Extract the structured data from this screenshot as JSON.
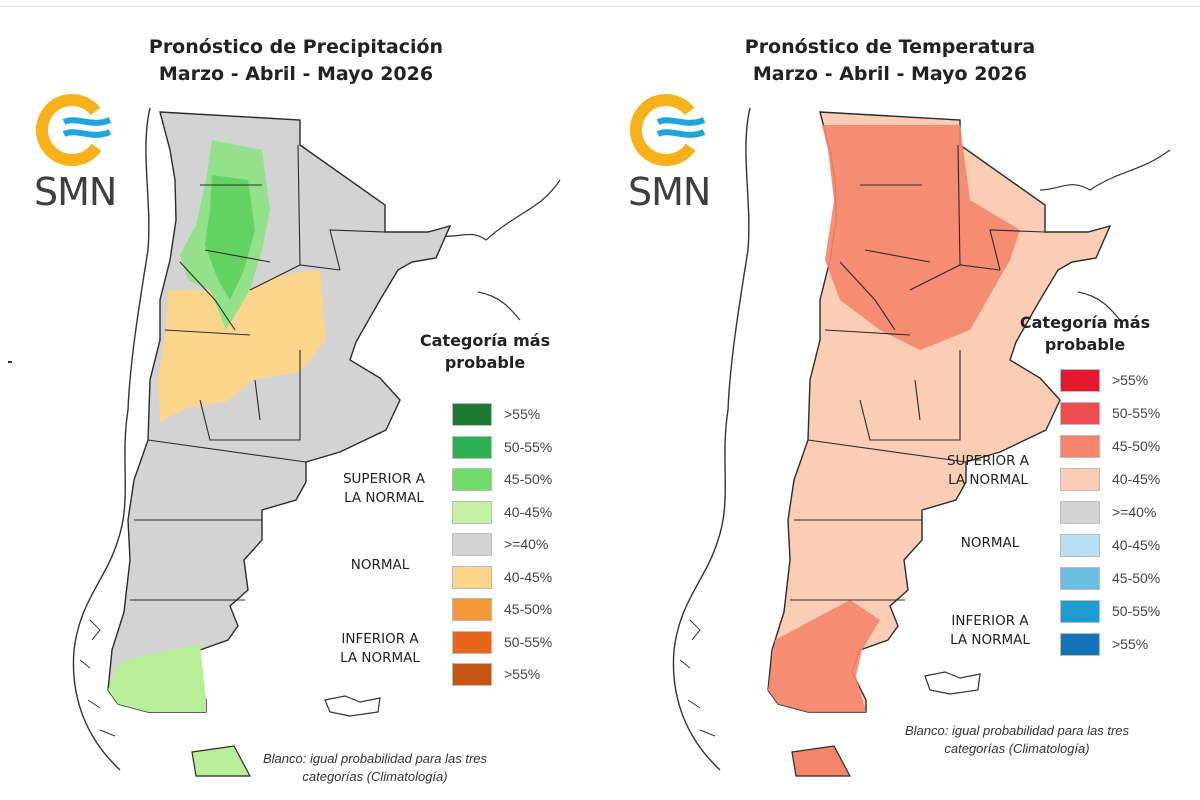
{
  "panels": {
    "precip": {
      "title_line1": "Pronóstico de Precipitación",
      "title_line2": "Marzo - Abril - Mayo 2026",
      "logo_text": "SMN",
      "legend_title_line1": "Categoría más",
      "legend_title_line2": "probable",
      "swatches": [
        {
          "label": ">55%",
          "color": "#1e7a33"
        },
        {
          "label": "50-55%",
          "color": "#2db253"
        },
        {
          "label": "45-50%",
          "color": "#6fdc6b"
        },
        {
          "label": "40-45%",
          "color": "#c4f1a6"
        },
        {
          "label": ">=40%",
          "color": "#d3d3d3"
        },
        {
          "label": "40-45%",
          "color": "#fbd58c"
        },
        {
          "label": "45-50%",
          "color": "#f29a3a"
        },
        {
          "label": "50-55%",
          "color": "#e8661a"
        },
        {
          "label": ">55%",
          "color": "#c45512"
        }
      ],
      "cat_superior_line1": "SUPERIOR A",
      "cat_superior_line2": "LA NORMAL",
      "cat_normal": "NORMAL",
      "cat_inferior_line1": "INFERIOR A",
      "cat_inferior_line2": "LA NORMAL",
      "note_line1": "Blanco: igual probabilidad para las tres",
      "note_line2": "categorías (Climatología)"
    },
    "temp": {
      "title_line1": "Pronóstico de Temperatura",
      "title_line2": "Marzo - Abril - Mayo 2026",
      "logo_text": "SMN",
      "legend_title_line1": "Categoría más",
      "legend_title_line2": "probable",
      "swatches": [
        {
          "label": ">55%",
          "color": "#e31a2d"
        },
        {
          "label": "50-55%",
          "color": "#f04b50"
        },
        {
          "label": "45-50%",
          "color": "#f5856a"
        },
        {
          "label": "40-45%",
          "color": "#fbcdb4"
        },
        {
          "label": ">=40%",
          "color": "#d3d3d3"
        },
        {
          "label": "40-45%",
          "color": "#b9dff2"
        },
        {
          "label": "45-50%",
          "color": "#6bbde2"
        },
        {
          "label": "50-55%",
          "color": "#1e9bd1"
        },
        {
          "label": ">55%",
          "color": "#1273b5"
        }
      ],
      "cat_superior_line1": "SUPERIOR A",
      "cat_superior_line2": "LA NORMAL",
      "cat_normal": "NORMAL",
      "cat_inferior_line1": "INFERIOR A",
      "cat_inferior_line2": "LA NORMAL",
      "note_line1": "Blanco: igual probabilidad para las tres",
      "note_line2": "categorías (Climatología)"
    }
  },
  "colors": {
    "logo_yellow": "#f7b21b",
    "logo_blue": "#1ea5dc",
    "border": "#2b2b2b"
  },
  "icons": [
    "smn-logo-icon"
  ]
}
